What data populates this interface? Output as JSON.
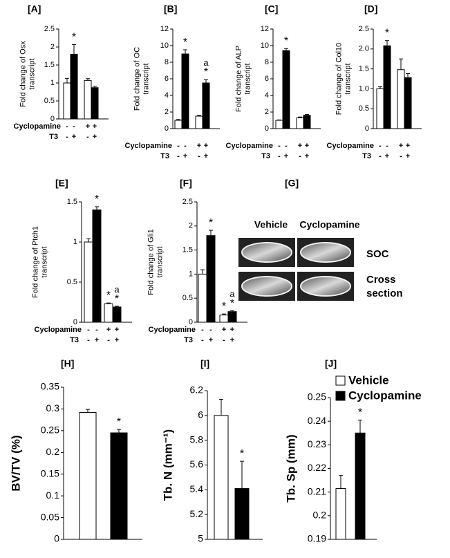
{
  "chart_data": [
    {
      "type": "bar",
      "panel": "[A]",
      "ylabel": [
        "Fold change of Osx",
        "transcript"
      ],
      "ylim": [
        0,
        2.5
      ],
      "yticks": [
        0,
        0.5,
        1,
        1.5,
        2,
        2.5
      ],
      "values": [
        1.0,
        1.8,
        1.07,
        0.87
      ],
      "errors": [
        0.13,
        0.27,
        0.05,
        0.04
      ],
      "colors": [
        "#ffffff",
        "#000000",
        "#ffffff",
        "#000000"
      ],
      "annotations": [
        [],
        [
          "*"
        ],
        [],
        []
      ],
      "conditions": [
        {
          "name": "Cyclopamine",
          "values": [
            "-",
            "-",
            "+",
            "+"
          ]
        },
        {
          "name": "T3",
          "values": [
            "-",
            "+",
            "-",
            "+"
          ]
        }
      ]
    },
    {
      "type": "bar",
      "panel": "[B]",
      "ylabel": [
        "Fold change of OC",
        "transcript"
      ],
      "ylim": [
        0,
        12
      ],
      "yticks": [
        0,
        2,
        4,
        6,
        8,
        10,
        12
      ],
      "values": [
        1.0,
        9.0,
        1.5,
        5.5
      ],
      "errors": [
        0.1,
        0.5,
        0.1,
        0.4
      ],
      "colors": [
        "#ffffff",
        "#000000",
        "#ffffff",
        "#000000"
      ],
      "annotations": [
        [],
        [
          "*"
        ],
        [],
        [
          "*",
          "a"
        ]
      ],
      "conditions": [
        {
          "name": "Cyclopamine",
          "values": [
            "-",
            "-",
            "+",
            "+"
          ]
        },
        {
          "name": "T3",
          "values": [
            "-",
            "+",
            "-",
            "+"
          ]
        }
      ]
    },
    {
      "type": "bar",
      "panel": "[C]",
      "ylabel": [
        "Fold change of ALP",
        "transcript"
      ],
      "ylim": [
        0,
        12
      ],
      "yticks": [
        0,
        2,
        4,
        6,
        8,
        10,
        12
      ],
      "values": [
        1.0,
        9.4,
        1.3,
        1.6
      ],
      "errors": [
        0.05,
        0.25,
        0.1,
        0.1
      ],
      "colors": [
        "#ffffff",
        "#000000",
        "#ffffff",
        "#000000"
      ],
      "annotations": [
        [],
        [
          "*"
        ],
        [],
        []
      ],
      "conditions": [
        {
          "name": "Cyclopamine",
          "values": [
            "-",
            "-",
            "+",
            "+"
          ]
        },
        {
          "name": "T3",
          "values": [
            "-",
            "+",
            "-",
            "+"
          ]
        }
      ]
    },
    {
      "type": "bar",
      "panel": "[D]",
      "ylabel": [
        "Fold change of Col10",
        "transcript"
      ],
      "ylim": [
        0,
        2.5
      ],
      "yticks": [
        0,
        {
          "value": 0.5,
          "label": "0.5"
        },
        {
          "value": 1,
          "label": "1.0"
        },
        {
          "value": 1.5,
          "label": "1.5"
        },
        {
          "value": 2,
          "label": "2.0"
        },
        {
          "value": 2.5,
          "label": "2.5"
        }
      ],
      "values": [
        1.0,
        2.08,
        1.48,
        1.28
      ],
      "errors": [
        0.05,
        0.13,
        0.27,
        0.1
      ],
      "colors": [
        "#ffffff",
        "#000000",
        "#ffffff",
        "#000000"
      ],
      "annotations": [
        [],
        [
          "*"
        ],
        [],
        []
      ],
      "conditions": [
        {
          "name": "Cyclopamine",
          "values": [
            "-",
            "-",
            "+",
            "+"
          ]
        },
        {
          "name": "T3",
          "values": [
            "-",
            "+",
            "-",
            "+"
          ]
        }
      ]
    },
    {
      "type": "bar",
      "panel": "[E]",
      "ylabel": [
        "Fold change of Ptch1",
        "transcript"
      ],
      "ylim": [
        0,
        1.5
      ],
      "yticks": [
        0,
        0.5,
        1,
        1.5
      ],
      "values": [
        1.0,
        1.4,
        0.23,
        0.19
      ],
      "errors": [
        0.04,
        0.04,
        0.01,
        0.01
      ],
      "colors": [
        "#ffffff",
        "#000000",
        "#ffffff",
        "#000000"
      ],
      "annotations": [
        [],
        [
          "*"
        ],
        [
          "*"
        ],
        [
          "*",
          "a"
        ]
      ],
      "conditions": [
        {
          "name": "Cyclopamine",
          "values": [
            "-",
            "-",
            "+",
            "+"
          ]
        },
        {
          "name": "T3",
          "values": [
            "-",
            "+",
            "-",
            "+"
          ]
        }
      ]
    },
    {
      "type": "bar",
      "panel": "[F]",
      "ylabel": [
        "Fold change of Gli1",
        "transcript"
      ],
      "ylim": [
        0,
        2.5
      ],
      "yticks": [
        0,
        0.5,
        1,
        1.5,
        2,
        2.5
      ],
      "values": [
        1.0,
        1.8,
        0.15,
        0.22
      ],
      "errors": [
        0.09,
        0.11,
        0.02,
        0.02
      ],
      "colors": [
        "#ffffff",
        "#000000",
        "#ffffff",
        "#000000"
      ],
      "annotations": [
        [],
        [
          "*"
        ],
        [
          "*"
        ],
        [
          "*",
          "a"
        ]
      ],
      "conditions": [
        {
          "name": "Cyclopamine",
          "values": [
            "-",
            "-",
            "+",
            "+"
          ]
        },
        {
          "name": "T3",
          "values": [
            "-",
            "+",
            "-",
            "+"
          ]
        }
      ]
    },
    {
      "type": "image",
      "panel": "[G]",
      "columns": [
        "Vehicle",
        "Cyclopamine"
      ],
      "rows": [
        [
          "SOC"
        ],
        [
          "Cross",
          "section"
        ]
      ]
    },
    {
      "type": "bar",
      "panel": "[H]",
      "ylabel": [
        "BV/TV (%)"
      ],
      "ylim": [
        0,
        0.35
      ],
      "yticks": [
        0,
        0.05,
        0.1,
        0.15,
        0.2,
        0.25,
        0.3,
        0.35
      ],
      "values": [
        0.292,
        0.245
      ],
      "errors": [
        0.007,
        0.008
      ],
      "colors": [
        "#ffffff",
        "#000000"
      ],
      "annotations": [
        [],
        [
          "*"
        ]
      ]
    },
    {
      "type": "bar",
      "panel": "[I]",
      "ylabel": [
        "Tb. N (mm⁻¹)"
      ],
      "ylim": [
        5,
        6.2
      ],
      "yticks": [
        5,
        5.2,
        5.4,
        5.6,
        5.8,
        6,
        6.2
      ],
      "values": [
        6.0,
        5.41
      ],
      "errors": [
        0.13,
        0.22
      ],
      "colors": [
        "#ffffff",
        "#000000"
      ],
      "annotations": [
        [],
        [
          "*"
        ]
      ]
    },
    {
      "type": "bar",
      "panel": "[J]",
      "ylabel": [
        "Tb. Sp (mm)"
      ],
      "ylim": [
        0.19,
        0.25
      ],
      "yticks": [
        0.19,
        0.2,
        0.21,
        0.22,
        0.23,
        0.24,
        0.25
      ],
      "values": [
        0.2115,
        0.235
      ],
      "errors": [
        0.0055,
        0.0055
      ],
      "colors": [
        "#ffffff",
        "#000000"
      ],
      "annotations": [
        [],
        [
          "*"
        ]
      ],
      "legend": [
        {
          "name": "Vehicle",
          "color": "#ffffff"
        },
        {
          "name": "Cyclopamine",
          "color": "#000000"
        }
      ]
    }
  ]
}
